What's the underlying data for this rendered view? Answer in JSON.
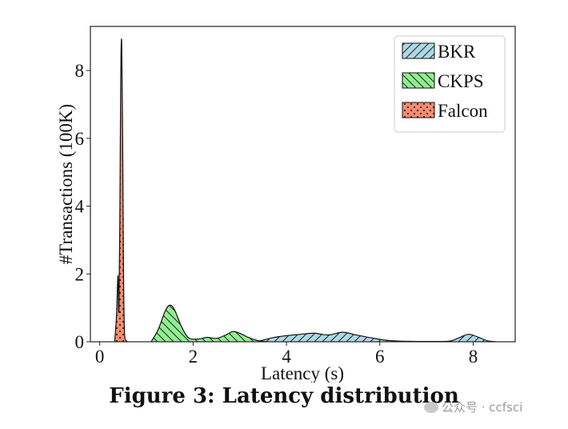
{
  "chart_data": {
    "type": "area",
    "title": "",
    "xlabel": "Latency (s)",
    "ylabel": "#Transactions (100K)",
    "xlim": [
      -0.2,
      8.9
    ],
    "ylim": [
      0,
      9.3
    ],
    "xticks": [
      0,
      2,
      4,
      6,
      8
    ],
    "yticks": [
      0,
      2,
      4,
      6,
      8
    ],
    "grid": false,
    "legend_position": "top-right",
    "series": [
      {
        "name": "BKR",
        "color": "#add8e6",
        "hatch": "//",
        "x": [
          3.0,
          3.4,
          3.7,
          4.0,
          4.3,
          4.6,
          4.9,
          5.2,
          5.5,
          5.8,
          6.1,
          6.4,
          6.8,
          7.2,
          7.5,
          7.7,
          7.9,
          8.1,
          8.3,
          8.5
        ],
        "y": [
          0,
          0.02,
          0.12,
          0.18,
          0.22,
          0.25,
          0.2,
          0.28,
          0.2,
          0.12,
          0.05,
          0.02,
          0.01,
          0.01,
          0.02,
          0.12,
          0.22,
          0.14,
          0.03,
          0
        ]
      },
      {
        "name": "CKPS",
        "color": "#90ee90",
        "hatch": "\\\\",
        "x": [
          1.1,
          1.25,
          1.4,
          1.5,
          1.6,
          1.75,
          1.9,
          2.1,
          2.3,
          2.5,
          2.7,
          2.85,
          3.0,
          3.2,
          3.4,
          3.6
        ],
        "y": [
          0,
          0.35,
          0.9,
          1.08,
          0.95,
          0.45,
          0.12,
          0.08,
          0.13,
          0.1,
          0.2,
          0.3,
          0.25,
          0.12,
          0.03,
          0
        ]
      },
      {
        "name": "Falcon",
        "color": "#fa8c6e",
        "hatch": "..",
        "x": [
          0.32,
          0.36,
          0.39,
          0.41,
          0.43,
          0.45,
          0.47,
          0.49,
          0.51,
          0.53,
          0.56,
          0.6
        ],
        "y": [
          0,
          0.8,
          1.95,
          0.9,
          3.5,
          7.8,
          8.85,
          6.2,
          2.0,
          0.3,
          0.05,
          0
        ]
      }
    ]
  },
  "caption": "Figure 3: Latency distribution",
  "watermark": "公众号 · ccfsci"
}
